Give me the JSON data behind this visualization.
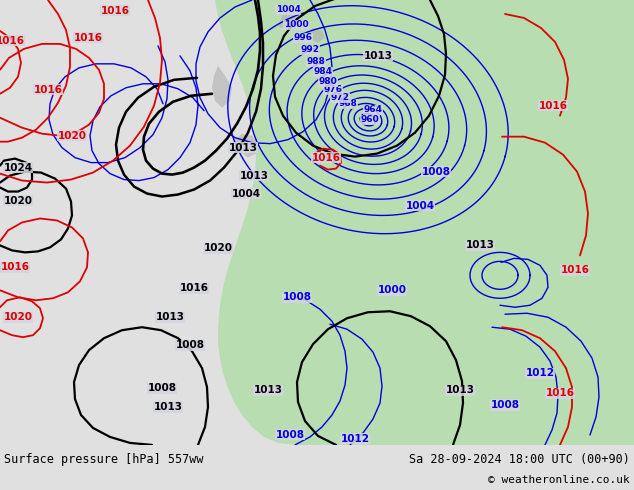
{
  "title_left": "Surface pressure [hPa] 557ww",
  "title_right": "Sa 28-09-2024 18:00 UTC (00+90)",
  "copyright": "© weatheronline.co.uk",
  "bg_color": "#d4d4e0",
  "land_color": "#b8ddb0",
  "water_color": "#d4d4e0",
  "blue": "#0000dd",
  "black": "#000000",
  "red": "#dd0000",
  "bottom_bg": "#e0e0e0",
  "lw_thin": 1.0,
  "lw_thick": 1.6,
  "lw_red": 1.3,
  "label_fs": 7.5
}
